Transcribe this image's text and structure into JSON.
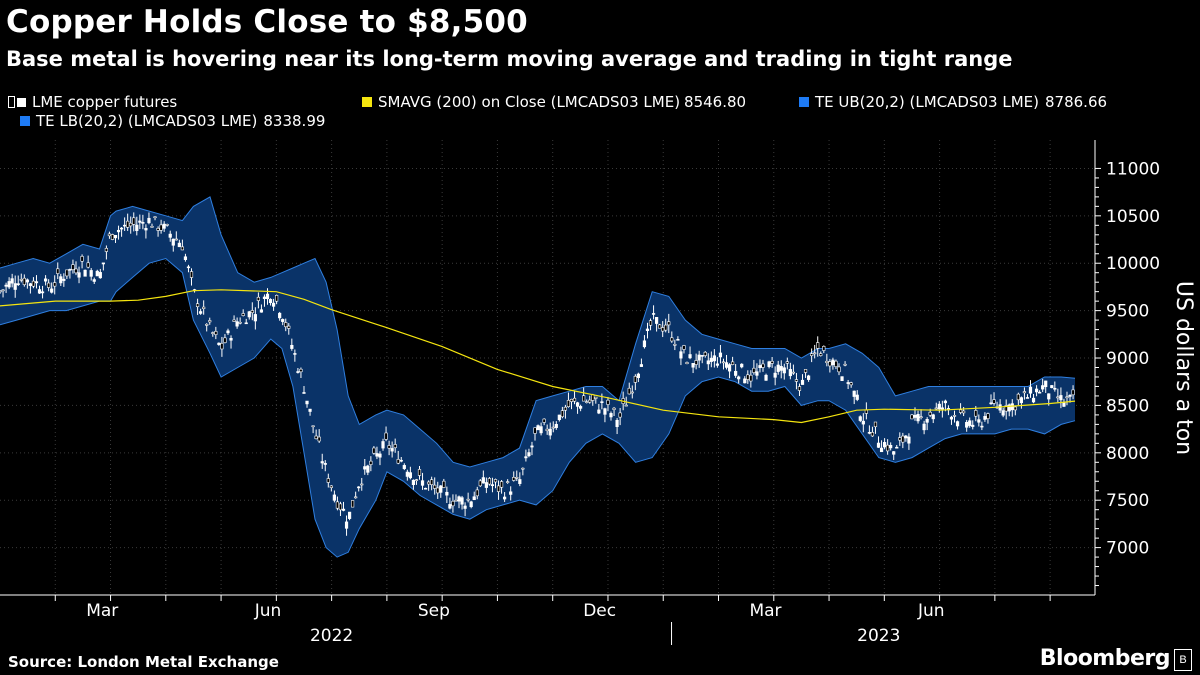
{
  "title": "Copper Holds Close to $8,500",
  "subtitle": "Base metal is hovering near its long-term moving average and trading in tight range",
  "source": "Source: London Metal Exchange",
  "brand": "Bloomberg",
  "colors": {
    "background": "#000000",
    "band": "#0a3368",
    "band_edge": "#2f7fe0",
    "sma": "#f5e50f",
    "price": "#ffffff",
    "ub_swatch": "#1e7bf5",
    "lb_swatch": "#1e7bf5"
  },
  "chart_data": {
    "type": "line",
    "title": "Copper Holds Close to $8,500",
    "ylabel": "US dollars a ton",
    "ylim": [
      6500,
      11300
    ],
    "yticks": [
      7000,
      7500,
      8000,
      8500,
      9000,
      9500,
      10000,
      10500,
      11000
    ],
    "x_range": [
      0,
      19.45
    ],
    "x_unit": "months since Jan 2022",
    "month_ticks": [
      {
        "x": 2,
        "label": "Mar"
      },
      {
        "x": 5,
        "label": "Jun"
      },
      {
        "x": 8,
        "label": "Sep"
      },
      {
        "x": 11,
        "label": "Dec"
      },
      {
        "x": 14,
        "label": "Mar"
      },
      {
        "x": 17,
        "label": "Jun"
      }
    ],
    "year_labels": [
      {
        "x": 6.0,
        "label": "2022"
      },
      {
        "x": 15.9,
        "label": "2023"
      }
    ],
    "year_divider_x": 12,
    "legend": [
      {
        "name": "LME copper futures",
        "value": ""
      },
      {
        "name": "SMAVG (200)  on Close (LMCADS03 LME)",
        "value": "8546.80"
      },
      {
        "name": "TE UB(20,2) (LMCADS03 LME)",
        "value": "8786.66"
      },
      {
        "name": "TE LB(20,2) (LMCADS03 LME)",
        "value": "8338.99"
      }
    ],
    "series": [
      {
        "name": "LME copper futures",
        "x": [
          0.0,
          0.3,
          0.6,
          0.9,
          1.2,
          1.5,
          1.8,
          2.0,
          2.1,
          2.4,
          2.7,
          3.0,
          3.3,
          3.5,
          3.8,
          4.0,
          4.3,
          4.6,
          4.9,
          5.1,
          5.3,
          5.5,
          5.7,
          5.9,
          6.1,
          6.3,
          6.5,
          6.8,
          7.0,
          7.3,
          7.6,
          7.9,
          8.2,
          8.5,
          8.8,
          9.1,
          9.4,
          9.7,
          10.0,
          10.3,
          10.6,
          10.9,
          11.2,
          11.5,
          11.8,
          12.1,
          12.4,
          12.7,
          13.0,
          13.3,
          13.6,
          13.9,
          14.2,
          14.5,
          14.8,
          15.0,
          15.3,
          15.6,
          15.9,
          16.2,
          16.5,
          16.8,
          17.1,
          17.4,
          17.7,
          18.0,
          18.3,
          18.6,
          18.9,
          19.2,
          19.45
        ],
        "values": [
          9700,
          9850,
          9800,
          9750,
          9900,
          10000,
          9850,
          10300,
          10350,
          10400,
          10450,
          10350,
          10200,
          9700,
          9300,
          9100,
          9400,
          9500,
          9700,
          9500,
          9100,
          8700,
          8200,
          7800,
          7500,
          7300,
          7700,
          7950,
          8100,
          7900,
          7700,
          7600,
          7500,
          7500,
          7700,
          7600,
          7700,
          8200,
          8300,
          8500,
          8550,
          8500,
          8350,
          8800,
          9400,
          9300,
          9000,
          8950,
          9000,
          8900,
          8800,
          8900,
          8900,
          8700,
          9100,
          9000,
          8850,
          8400,
          8150,
          8000,
          8300,
          8400,
          8500,
          8350,
          8300,
          8500,
          8500,
          8600,
          8700,
          8550,
          8546
        ],
        "color": "#ffffff"
      },
      {
        "name": "SMAVG (200)",
        "x": [
          0.0,
          1.0,
          2.0,
          2.5,
          3.0,
          3.5,
          4.0,
          5.0,
          5.5,
          6.0,
          7.0,
          8.0,
          9.0,
          10.0,
          11.0,
          12.0,
          13.0,
          14.0,
          14.5,
          15.0,
          15.5,
          16.0,
          17.0,
          18.0,
          19.0,
          19.45
        ],
        "values": [
          9550,
          9600,
          9600,
          9610,
          9650,
          9710,
          9720,
          9700,
          9620,
          9510,
          9320,
          9120,
          8880,
          8700,
          8580,
          8450,
          8380,
          8350,
          8320,
          8380,
          8450,
          8460,
          8450,
          8480,
          8520,
          8546
        ],
        "color": "#f5e50f"
      },
      {
        "name": "TE UB(20,2)",
        "x": [
          0.0,
          0.3,
          0.6,
          0.9,
          1.2,
          1.5,
          1.8,
          2.0,
          2.1,
          2.4,
          2.7,
          3.0,
          3.3,
          3.5,
          3.8,
          4.0,
          4.3,
          4.6,
          4.9,
          5.1,
          5.3,
          5.5,
          5.7,
          5.9,
          6.1,
          6.3,
          6.5,
          6.8,
          7.0,
          7.3,
          7.6,
          7.9,
          8.2,
          8.5,
          8.8,
          9.1,
          9.4,
          9.7,
          10.0,
          10.3,
          10.6,
          10.9,
          11.2,
          11.5,
          11.8,
          12.1,
          12.4,
          12.7,
          13.0,
          13.3,
          13.6,
          13.9,
          14.2,
          14.5,
          14.8,
          15.0,
          15.3,
          15.6,
          15.9,
          16.2,
          16.5,
          16.8,
          17.1,
          17.4,
          17.7,
          18.0,
          18.3,
          18.6,
          18.9,
          19.2,
          19.45
        ],
        "values": [
          9950,
          10000,
          10050,
          10000,
          10100,
          10200,
          10150,
          10500,
          10550,
          10600,
          10550,
          10500,
          10450,
          10600,
          10700,
          10300,
          9900,
          9800,
          9850,
          9900,
          9950,
          10000,
          10050,
          9800,
          9300,
          8600,
          8300,
          8400,
          8450,
          8400,
          8250,
          8100,
          7900,
          7850,
          7900,
          7950,
          8050,
          8550,
          8600,
          8650,
          8700,
          8700,
          8550,
          9150,
          9700,
          9650,
          9400,
          9250,
          9200,
          9150,
          9100,
          9100,
          9100,
          9000,
          9100,
          9100,
          9150,
          9050,
          8900,
          8600,
          8650,
          8700,
          8700,
          8700,
          8700,
          8700,
          8700,
          8700,
          8800,
          8800,
          8786.66
        ],
        "color": "#2f7fe0"
      },
      {
        "name": "TE LB(20,2)",
        "x": [
          0.0,
          0.3,
          0.6,
          0.9,
          1.2,
          1.5,
          1.8,
          2.0,
          2.1,
          2.4,
          2.7,
          3.0,
          3.3,
          3.5,
          3.8,
          4.0,
          4.3,
          4.6,
          4.9,
          5.1,
          5.3,
          5.5,
          5.7,
          5.9,
          6.1,
          6.3,
          6.5,
          6.8,
          7.0,
          7.3,
          7.6,
          7.9,
          8.2,
          8.5,
          8.8,
          9.1,
          9.4,
          9.7,
          10.0,
          10.3,
          10.6,
          10.9,
          11.2,
          11.5,
          11.8,
          12.1,
          12.4,
          12.7,
          13.0,
          13.3,
          13.6,
          13.9,
          14.2,
          14.5,
          14.8,
          15.0,
          15.3,
          15.6,
          15.9,
          16.2,
          16.5,
          16.8,
          17.1,
          17.4,
          17.7,
          18.0,
          18.3,
          18.6,
          18.9,
          19.2,
          19.45
        ],
        "values": [
          9350,
          9400,
          9450,
          9500,
          9500,
          9550,
          9600,
          9600,
          9700,
          9850,
          10000,
          10050,
          9900,
          9400,
          9050,
          8800,
          8900,
          9000,
          9200,
          9100,
          8700,
          8000,
          7300,
          7000,
          6900,
          6950,
          7200,
          7500,
          7800,
          7700,
          7550,
          7450,
          7350,
          7300,
          7400,
          7450,
          7500,
          7450,
          7600,
          7900,
          8100,
          8200,
          8100,
          7900,
          7950,
          8200,
          8600,
          8750,
          8800,
          8750,
          8650,
          8650,
          8700,
          8500,
          8550,
          8550,
          8450,
          8200,
          7950,
          7900,
          7950,
          8050,
          8150,
          8200,
          8200,
          8200,
          8250,
          8250,
          8200,
          8300,
          8338.99
        ],
        "color": "#2f7fe0"
      }
    ]
  }
}
